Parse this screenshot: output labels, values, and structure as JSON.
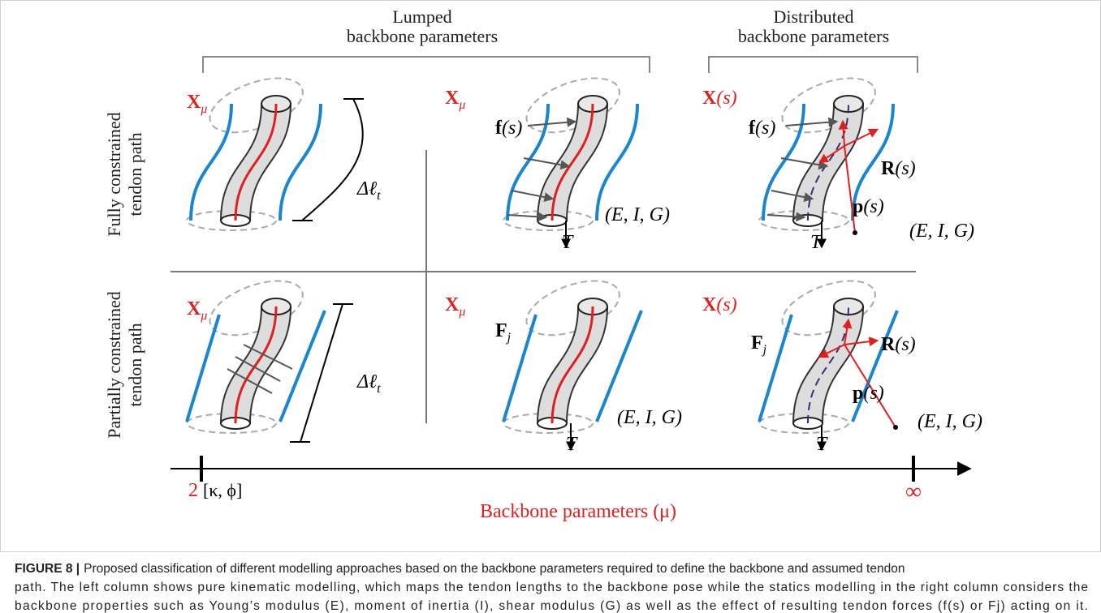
{
  "figure": {
    "column_headers": [
      {
        "lines": [
          "Lumped",
          "backbone parameters"
        ]
      },
      {
        "lines": [
          "Distributed",
          "backbone parameters"
        ]
      }
    ],
    "row_headers": [
      {
        "lines": [
          "Fully constrained",
          "tendon path"
        ]
      },
      {
        "lines": [
          "Partially constrained",
          "tendon path"
        ]
      }
    ],
    "labels": [
      {
        "bold": "X",
        "sub": "μ",
        "color": "#e02020"
      },
      {
        "rest": "Δℓ",
        "sub": "t"
      },
      {
        "bold": "X",
        "sub": "μ",
        "color": "#e02020"
      },
      {
        "bold": "f",
        "rest": "(s)"
      },
      {
        "rest": "(E, I, G)"
      },
      {
        "rest": "T"
      },
      {
        "bold": "X",
        "rest": "(s)",
        "color": "#e02020"
      },
      {
        "bold": "f",
        "rest": "(s)"
      },
      {
        "bold": "R",
        "rest": "(s)"
      },
      {
        "bold": "p",
        "rest": "(s)"
      },
      {
        "rest": "(E, I, G)"
      },
      {
        "rest": "T"
      },
      {
        "bold": "X",
        "sub": "μ",
        "color": "#e02020"
      },
      {
        "rest": "Δℓ",
        "sub": "t"
      },
      {
        "bold": "X",
        "sub": "μ",
        "color": "#e02020"
      },
      {
        "bold": "F",
        "sub": "j"
      },
      {
        "rest": "(E, I, G)"
      },
      {
        "rest": "T"
      },
      {
        "bold": "X",
        "rest": "(s)",
        "color": "#e02020"
      },
      {
        "bold": "F",
        "sub": "j"
      },
      {
        "bold": "R",
        "rest": "(s)"
      },
      {
        "bold": "p",
        "rest": "(s)"
      },
      {
        "rest": "(E, I, G)"
      },
      {
        "rest": "T"
      }
    ],
    "axis": {
      "start": "2",
      "start_note": "[κ, ϕ]",
      "end": "∞",
      "title": "Backbone parameters (μ)"
    },
    "caption": {
      "label": "FIGURE 8 |",
      "lines": [
        "Proposed classification of different modelling approaches based on the backbone parameters required to define the backbone and assumed tendon",
        "path. The left column shows pure kinematic modelling, which maps the tendon lengths to the backbone pose while the statics modelling in the right column considers the",
        "backbone properties such as Young’s modulus (E), moment of inertia (I), shear modulus (G) as well as the effect of resulting tendon forces (f(s) or Fj) acting on it."
      ]
    }
  }
}
